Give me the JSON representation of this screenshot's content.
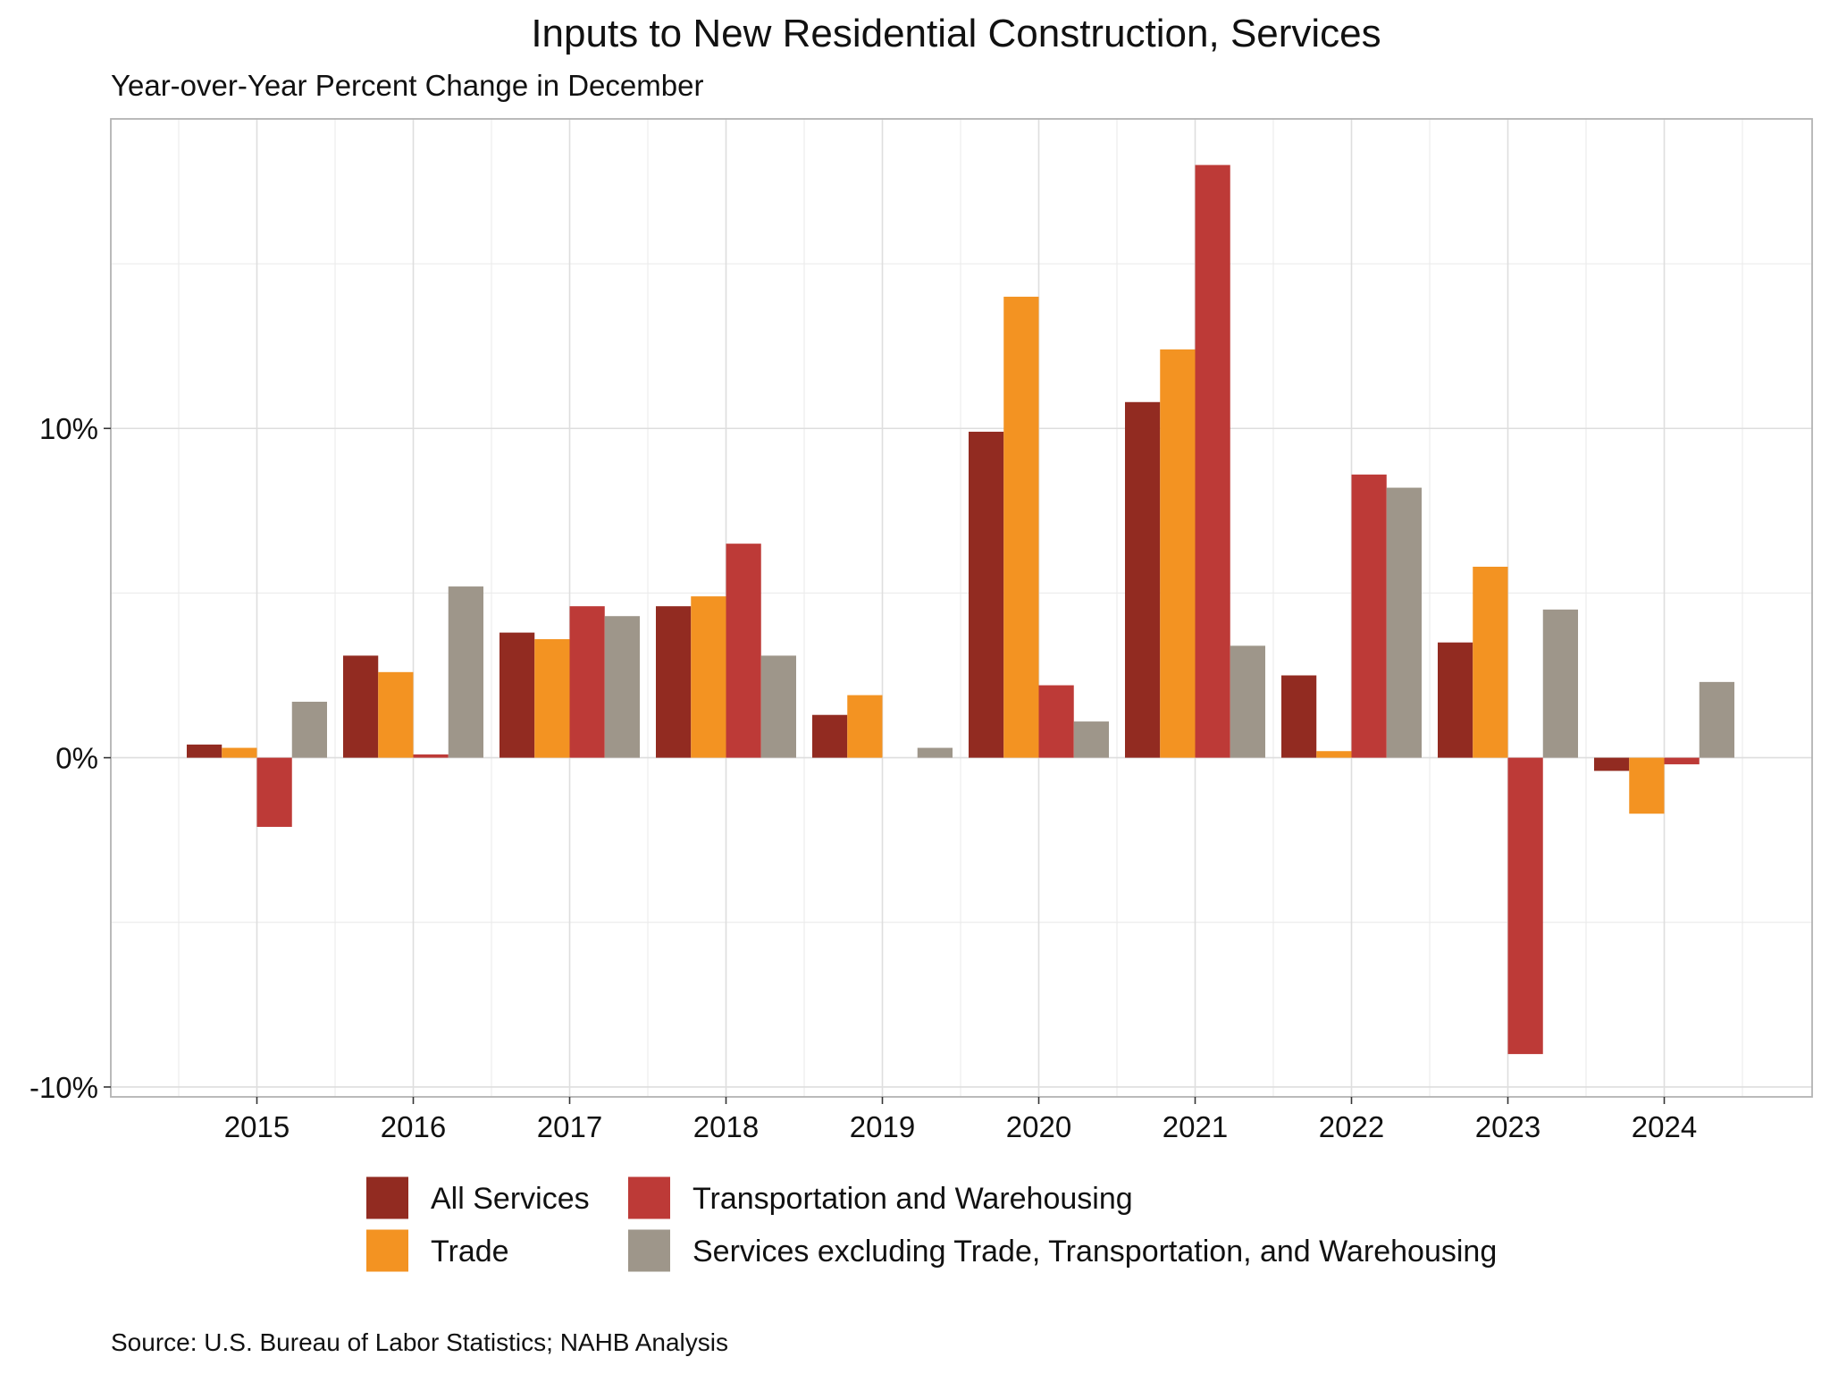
{
  "chart_data": {
    "type": "bar",
    "title": "Inputs to New Residential Construction, Services",
    "subtitle": "Year-over-Year Percent Change in December",
    "caption": "Source: U.S. Bureau of Labor Statistics; NAHB Analysis",
    "xlabel": "",
    "ylabel": "",
    "categories": [
      "2015",
      "2016",
      "2017",
      "2018",
      "2019",
      "2020",
      "2021",
      "2022",
      "2023",
      "2024"
    ],
    "series": [
      {
        "name": "All Services",
        "color": "#922b21",
        "values": [
          0.4,
          3.1,
          3.8,
          4.6,
          1.3,
          9.9,
          10.8,
          2.5,
          3.5,
          -0.4
        ]
      },
      {
        "name": "Trade",
        "color": "#f39322",
        "values": [
          0.3,
          2.6,
          3.6,
          4.9,
          1.9,
          14.0,
          12.4,
          0.2,
          5.8,
          -1.7
        ]
      },
      {
        "name": "Transportation and Warehousing",
        "color": "#bd3a37",
        "values": [
          -2.1,
          0.1,
          4.6,
          6.5,
          0.0,
          2.2,
          18.0,
          8.6,
          -9.0,
          -0.2
        ]
      },
      {
        "name": "Services excluding Trade, Transportation, and Warehousing",
        "color": "#9e968a",
        "values": [
          1.7,
          5.2,
          4.3,
          3.1,
          0.3,
          1.1,
          3.4,
          8.2,
          4.5,
          2.3
        ]
      }
    ],
    "y_ticks": [
      {
        "value": -10,
        "label": "-10%"
      },
      {
        "value": 0,
        "label": "0%"
      },
      {
        "value": 10,
        "label": "10%"
      }
    ],
    "y_minor_ticks": [
      -5,
      5,
      15
    ],
    "ylim": [
      -10.3,
      19.4
    ],
    "grid": true,
    "legend_position": "bottom"
  }
}
